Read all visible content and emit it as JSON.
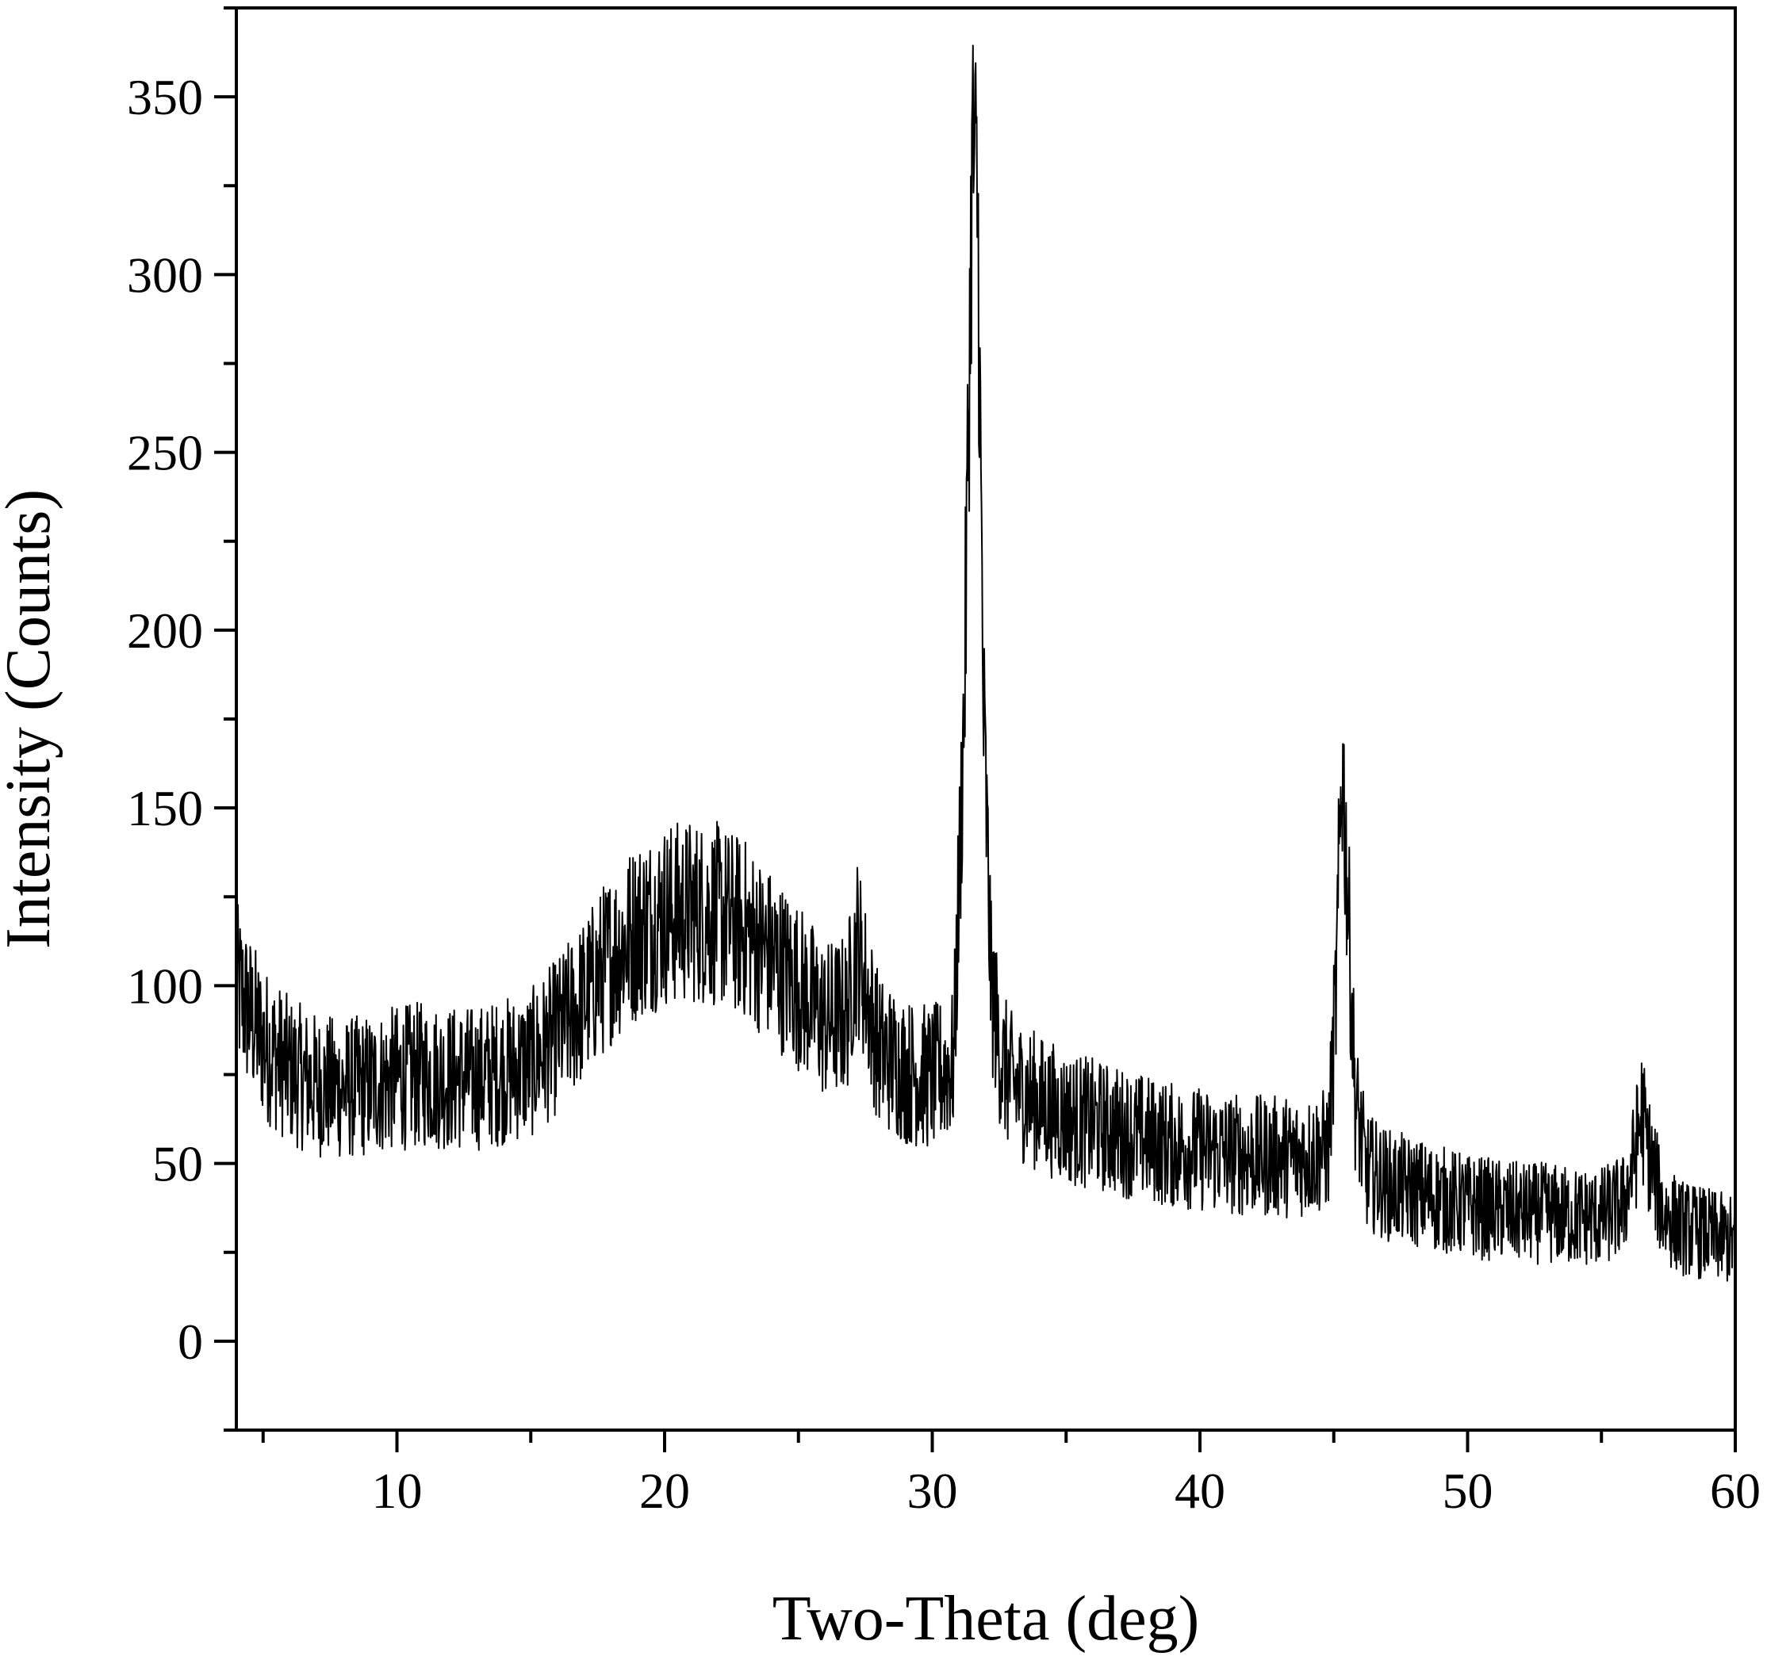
{
  "chart_data": {
    "type": "line",
    "title": "",
    "xlabel": "Two-Theta (deg)",
    "ylabel": "Intensity (Counts)",
    "xlim": [
      4,
      60
    ],
    "ylim": [
      -25,
      375
    ],
    "xticks": [
      10,
      20,
      30,
      40,
      50,
      60
    ],
    "yticks": [
      0,
      50,
      100,
      150,
      200,
      250,
      300,
      350
    ],
    "grid": false,
    "legend": "none",
    "line_color": "#000000",
    "series": [
      {
        "x": [
          4,
          5,
          6,
          7,
          8,
          9,
          10,
          11,
          12,
          13,
          14,
          15,
          16,
          17,
          18,
          19,
          20,
          21,
          22,
          23,
          24,
          25,
          26,
          26.8,
          27.2,
          27.6,
          28,
          29,
          30,
          30.8,
          31.2,
          31.5,
          31.7,
          31.9,
          32.2,
          32.6,
          33,
          34,
          35,
          36,
          37,
          38,
          39,
          40,
          41,
          42,
          43,
          44,
          44.8,
          45.1,
          45.3,
          45.5,
          45.8,
          46.2,
          47,
          48,
          49,
          50,
          51,
          52,
          53,
          54,
          55,
          55.8,
          56.2,
          56.5,
          56.8,
          57.3,
          58,
          59,
          60
        ],
        "y": [
          100,
          84,
          76,
          72,
          71,
          72,
          74,
          75,
          74,
          74,
          76,
          78,
          86,
          96,
          108,
          116,
          120,
          121,
          120,
          116,
          108,
          100,
          90,
          92,
          112,
          96,
          82,
          76,
          74,
          78,
          180,
          335,
          320,
          180,
          100,
          78,
          72,
          67,
          63,
          61,
          59,
          57,
          55,
          54,
          53,
          52,
          52,
          52,
          54,
          100,
          165,
          130,
          68,
          48,
          44,
          42,
          40,
          38,
          37,
          36,
          36,
          35,
          35,
          38,
          50,
          64,
          52,
          36,
          32,
          30,
          28
        ]
      }
    ]
  }
}
